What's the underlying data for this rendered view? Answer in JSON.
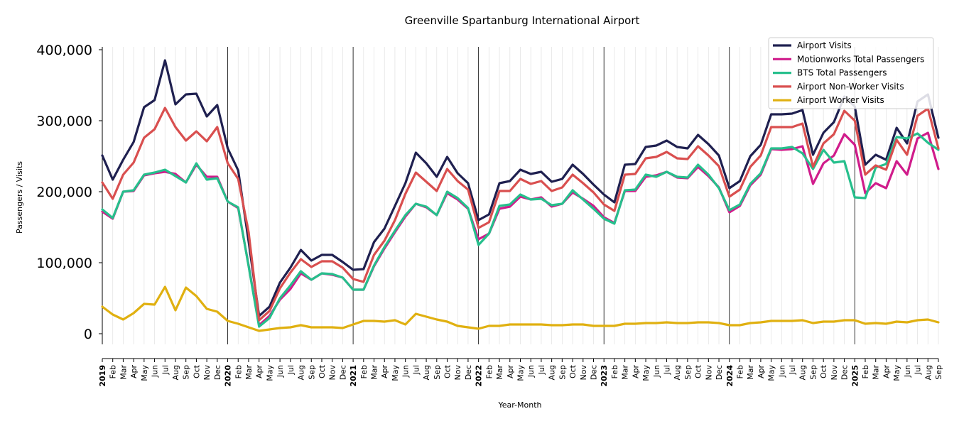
{
  "chart_data": {
    "type": "line",
    "title": "Greenville Spartanburg International Airport",
    "xlabel": "Year-Month",
    "ylabel": "Passengers / Visits",
    "ylim": [
      -15000,
      405000
    ],
    "yticks": [
      0,
      100000,
      200000,
      300000,
      400000
    ],
    "ytick_labels": [
      "0",
      "100,000",
      "200,000",
      "300,000",
      "400,000"
    ],
    "legend_position": "top-right",
    "grid": "vertical",
    "x_start": "2019-01",
    "x_end": "2025-09",
    "year_labels": [
      "2019",
      "2020",
      "2021",
      "2022",
      "2023",
      "2024",
      "2025"
    ],
    "month_labels": [
      "Feb",
      "Mar",
      "Apr",
      "May",
      "Jun",
      "Jul",
      "Aug",
      "Sep",
      "Oct",
      "Nov",
      "Dec"
    ],
    "series": [
      {
        "name": "Airport Visits",
        "color": "#1f2050",
        "values": [
          251000,
          217000,
          245000,
          270000,
          319000,
          329000,
          385000,
          323000,
          337000,
          338000,
          306000,
          322000,
          261000,
          230000,
          130000,
          25000,
          38000,
          72000,
          93000,
          118000,
          103000,
          111000,
          111000,
          101000,
          90000,
          91000,
          129000,
          148000,
          180000,
          212000,
          255000,
          240000,
          221000,
          249000,
          226000,
          212000,
          160000,
          168000,
          212000,
          215000,
          231000,
          225000,
          228000,
          214000,
          218000,
          238000,
          225000,
          210000,
          196000,
          185000,
          238000,
          239000,
          263000,
          265000,
          272000,
          263000,
          261000,
          280000,
          267000,
          251000,
          205000,
          215000,
          250000,
          266000,
          309000,
          309000,
          310000,
          315000,
          252000,
          283000,
          298000,
          334000,
          320000,
          238000,
          252000,
          245000,
          290000,
          268000,
          327000,
          337000,
          276000
        ]
      },
      {
        "name": "Motionworks Total Passengers",
        "color": "#d01c8b",
        "values": [
          172000,
          162000,
          200000,
          201000,
          223000,
          226000,
          228000,
          225000,
          213000,
          238000,
          221000,
          221000,
          186000,
          177000,
          96000,
          12000,
          25000,
          48000,
          63000,
          85000,
          76000,
          85000,
          83000,
          79000,
          62000,
          62000,
          95000,
          120000,
          143000,
          165000,
          183000,
          178000,
          167000,
          198000,
          189000,
          176000,
          133000,
          141000,
          176000,
          179000,
          193000,
          189000,
          192000,
          179000,
          183000,
          199000,
          190000,
          180000,
          164000,
          156000,
          201000,
          201000,
          221000,
          223000,
          228000,
          220000,
          219000,
          235000,
          222000,
          206000,
          171000,
          180000,
          209000,
          224000,
          260000,
          259000,
          260000,
          264000,
          211000,
          240000,
          251000,
          281000,
          266000,
          198000,
          212000,
          205000,
          243000,
          224000,
          275000,
          283000,
          232000
        ]
      },
      {
        "name": "BTS Total Passengers",
        "color": "#26bf8c",
        "values": [
          175000,
          163000,
          200000,
          202000,
          224000,
          227000,
          231000,
          222000,
          213000,
          240000,
          217000,
          219000,
          186000,
          178000,
          95000,
          10000,
          22000,
          50000,
          68000,
          88000,
          76000,
          85000,
          84000,
          79000,
          62000,
          62000,
          96000,
          122000,
          145000,
          167000,
          183000,
          179000,
          167000,
          200000,
          191000,
          177000,
          125000,
          141000,
          180000,
          182000,
          196000,
          189000,
          190000,
          181000,
          183000,
          202000,
          189000,
          176000,
          162000,
          155000,
          202000,
          203000,
          224000,
          221000,
          228000,
          221000,
          220000,
          238000,
          224000,
          205000,
          174000,
          182000,
          211000,
          226000,
          261000,
          261000,
          263000,
          254000,
          232000,
          259000,
          241000,
          243000,
          192000,
          191000,
          234000,
          239000,
          277000,
          275000,
          282000,
          269000,
          259000
        ]
      },
      {
        "name": "Airport Non-Worker Visits",
        "color": "#d94f4f",
        "values": [
          213000,
          190000,
          224000,
          241000,
          276000,
          288000,
          318000,
          291000,
          272000,
          285000,
          271000,
          291000,
          240000,
          218000,
          143000,
          19000,
          32000,
          64000,
          86000,
          105000,
          94000,
          102000,
          102000,
          93000,
          77000,
          73000,
          111000,
          131000,
          160000,
          197000,
          227000,
          214000,
          201000,
          232000,
          215000,
          203000,
          149000,
          157000,
          201000,
          201000,
          218000,
          211000,
          215000,
          201000,
          206000,
          224000,
          212000,
          199000,
          182000,
          173000,
          224000,
          225000,
          247000,
          249000,
          256000,
          247000,
          246000,
          264000,
          251000,
          236000,
          193000,
          203000,
          235000,
          251000,
          291000,
          291000,
          291000,
          296000,
          235000,
          268000,
          281000,
          314000,
          300000,
          224000,
          237000,
          231000,
          273000,
          252000,
          307000,
          317000,
          261000
        ]
      },
      {
        "name": "Airport Worker Visits",
        "color": "#e0b010",
        "values": [
          38000,
          27000,
          20000,
          29000,
          42000,
          41000,
          66000,
          33000,
          65000,
          53000,
          35000,
          31000,
          18000,
          14000,
          9000,
          4000,
          6000,
          8000,
          9000,
          12000,
          9000,
          9000,
          9000,
          8000,
          13000,
          18000,
          18000,
          17000,
          19000,
          13000,
          28000,
          24000,
          20000,
          17000,
          11000,
          9000,
          7000,
          11000,
          11000,
          13000,
          13000,
          13000,
          13000,
          12000,
          12000,
          13000,
          13000,
          11000,
          11000,
          11000,
          14000,
          14000,
          15000,
          15000,
          16000,
          15000,
          15000,
          16000,
          16000,
          15000,
          12000,
          12000,
          15000,
          16000,
          18000,
          18000,
          18000,
          19000,
          15000,
          17000,
          17000,
          19000,
          19000,
          14000,
          15000,
          14000,
          17000,
          16000,
          19000,
          20000,
          16000
        ]
      }
    ]
  }
}
